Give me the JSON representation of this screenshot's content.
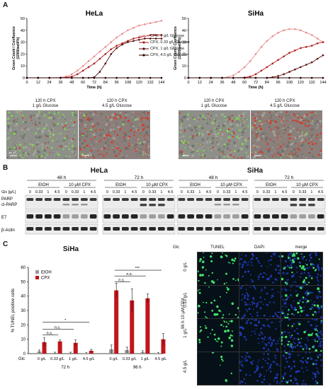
{
  "panels": {
    "A": "A",
    "B": "B",
    "C": "C"
  },
  "panelA": {
    "hela_title": "HeLa",
    "siha_title": "SiHa",
    "ylabel": "Green Count / Confluence (1000/well/%)",
    "xlabel": "Time (h)",
    "yticks": [
      "0",
      "10",
      "20",
      "30",
      "40",
      "50"
    ],
    "xticks": [
      "0",
      "12",
      "24",
      "36",
      "48",
      "60",
      "72",
      "84",
      "96",
      "108",
      "120",
      "132",
      "144"
    ],
    "legend": [
      "CPX, 0 g/L Glucose",
      "CPX, 0.33 g/L Glucose",
      "CPX, 1 g/L Glucose",
      "CPX, 4.5 g/L Glucose"
    ],
    "micro_labels": [
      [
        "120 h CPX",
        "1 g/L Glucose"
      ],
      [
        "120 h CPX",
        "4.5 g/L Glucose"
      ],
      [
        "120 h CPX",
        "1 g/L Glucose"
      ],
      [
        "120 h CPX",
        "4.5 g/L Glucose"
      ]
    ],
    "scalebar": "400 µm"
  },
  "chart_data": [
    {
      "type": "line",
      "title": "HeLa",
      "xlabel": "Time (h)",
      "ylabel": "Green Count / Confluence (1000/well/%)",
      "xlim": [
        0,
        144
      ],
      "ylim": [
        0,
        50
      ],
      "grid": false,
      "legend_position": "right",
      "series": [
        {
          "name": "CPX, 0 g/L Glucose",
          "color": "#e88c8c",
          "x": [
            0,
            12,
            24,
            36,
            42,
            48,
            54,
            60,
            66,
            72,
            78,
            84,
            90,
            96,
            102,
            108,
            114,
            120,
            126,
            132,
            138,
            144
          ],
          "y": [
            0,
            0,
            0,
            0.3,
            1,
            3,
            6,
            10,
            14,
            18,
            22,
            26,
            30,
            34,
            37,
            40,
            42,
            44,
            45,
            46,
            47,
            48
          ]
        },
        {
          "name": "CPX, 0.33 g/L Glucose",
          "color": "#b01a1a",
          "x": [
            0,
            12,
            24,
            36,
            42,
            48,
            54,
            60,
            66,
            72,
            78,
            84,
            90,
            96,
            102,
            108,
            114,
            120,
            126,
            132,
            138,
            144
          ],
          "y": [
            0,
            0,
            0,
            0,
            0.3,
            1,
            3,
            6,
            9,
            12,
            16,
            20,
            24,
            27,
            29,
            31,
            33,
            34,
            35,
            36,
            36,
            36
          ]
        },
        {
          "name": "CPX, 1 g/L Glucose",
          "color": "#5a0a0a",
          "x": [
            0,
            12,
            24,
            36,
            48,
            60,
            66,
            72,
            78,
            84,
            90,
            96,
            102,
            108,
            114,
            120,
            126,
            132,
            138,
            144
          ],
          "y": [
            0,
            0,
            0,
            0,
            0,
            0,
            0,
            0.5,
            5,
            12,
            20,
            25,
            28,
            30,
            31,
            32,
            33,
            33,
            33,
            33
          ]
        },
        {
          "name": "CPX, 4.5 g/L Glucose",
          "color": "#2a0000",
          "x": [
            0,
            12,
            24,
            36,
            48,
            60,
            72,
            84,
            96,
            108,
            120,
            132,
            144
          ],
          "y": [
            0,
            0,
            0,
            0,
            0,
            0,
            0,
            0,
            0,
            0,
            0,
            0,
            0
          ]
        }
      ]
    },
    {
      "type": "line",
      "title": "SiHa",
      "xlabel": "Time (h)",
      "ylabel": "Green Count / Confluence (1000/well/%)",
      "xlim": [
        0,
        144
      ],
      "ylim": [
        0,
        50
      ],
      "grid": false,
      "series": [
        {
          "name": "CPX, 0 g/L Glucose",
          "color": "#e88c8c",
          "x": [
            0,
            12,
            24,
            36,
            42,
            48,
            54,
            60,
            66,
            72,
            78,
            84,
            90,
            96,
            102,
            108,
            114,
            120,
            126,
            132,
            138,
            144
          ],
          "y": [
            0,
            0,
            0,
            0,
            0.5,
            2,
            5,
            9,
            14,
            20,
            26,
            31,
            35,
            38,
            40,
            41,
            41,
            40,
            38,
            36,
            33,
            30
          ]
        },
        {
          "name": "CPX, 0.33 g/L Glucose",
          "color": "#b01a1a",
          "x": [
            0,
            12,
            24,
            36,
            48,
            60,
            66,
            72,
            78,
            84,
            90,
            96,
            102,
            108,
            114,
            120,
            126,
            132,
            138,
            144
          ],
          "y": [
            0,
            0,
            0,
            0,
            0,
            0.3,
            1,
            3,
            6,
            9,
            12,
            15,
            18,
            21,
            23,
            25,
            26,
            27,
            29,
            30
          ]
        },
        {
          "name": "CPX, 1 g/L Glucose",
          "color": "#5a0a0a",
          "x": [
            0,
            12,
            24,
            36,
            48,
            60,
            72,
            84,
            90,
            96,
            102,
            108,
            114,
            120,
            126,
            132,
            138,
            144
          ],
          "y": [
            0,
            0,
            0,
            0,
            0,
            0,
            0,
            0,
            0.5,
            1.5,
            3,
            5,
            7,
            9,
            11,
            13,
            16,
            19
          ]
        },
        {
          "name": "CPX, 4.5 g/L Glucose",
          "color": "#2a0000",
          "x": [
            0,
            12,
            24,
            36,
            48,
            60,
            72,
            84,
            96,
            108,
            120,
            132,
            144
          ],
          "y": [
            0,
            0,
            0,
            0,
            0,
            0,
            0,
            0,
            0,
            0,
            0,
            0,
            0
          ]
        }
      ]
    },
    {
      "type": "bar",
      "title": "SiHa",
      "ylabel": "% TUNEL positive cells",
      "ylim": [
        0,
        60
      ],
      "yticks": [
        0,
        10,
        20,
        30,
        40,
        50,
        60
      ],
      "categories": [
        "0 g/L",
        "0.33 g/L",
        "1 g/L",
        "4.5 g/L",
        "0 g/L",
        "0.33 g/L",
        "1 g/L",
        "4.5 g/L"
      ],
      "groups": [
        "72 h",
        "96 h"
      ],
      "series": [
        {
          "name": "EtOH",
          "color": "#9a9a9a",
          "values": [
            1.5,
            0.5,
            0.5,
            0.3,
            3,
            2.5,
            1,
            0.3
          ],
          "errors": [
            1,
            0.5,
            0.5,
            0.3,
            3,
            2,
            1,
            0.3
          ]
        },
        {
          "name": "CPX",
          "color": "#c0161c",
          "values": [
            8,
            8.5,
            7.5,
            2,
            44,
            37,
            38.5,
            10
          ],
          "errors": [
            3,
            1,
            2,
            1,
            5,
            8,
            3,
            4
          ]
        }
      ],
      "significance": [
        "n.s.",
        "n.s.",
        "*",
        "n.s.",
        "n.s.",
        "***"
      ]
    }
  ],
  "panelB": {
    "hela_title": "HeLa",
    "siha_title": "SiHa",
    "time_48": "48 h",
    "time_72": "72 h",
    "etoh": "EtOH",
    "cpx": "10 µM CPX",
    "glc_label": "Glc [g/L]",
    "glc_values": [
      "0",
      "0.33",
      "1",
      "4.5",
      "0",
      "0.33",
      "1",
      "4.5"
    ],
    "row_labels": [
      "PARP",
      "cl-PARP",
      "E7",
      "β-Actin"
    ]
  },
  "panelC": {
    "title": "SiHa",
    "ylabel": "% TUNEL positive cells",
    "yticks": [
      "0",
      "10",
      "20",
      "30",
      "40",
      "50",
      "60"
    ],
    "legend": [
      "EtOH",
      "CPX"
    ],
    "glc_label": "Glc",
    "cats": [
      "0 g/L",
      "0.33 g/L",
      "1 g/L",
      "4.5 g/L",
      "0 g/L",
      "0.33 g/L",
      "1 g/L",
      "4.5 g/L"
    ],
    "group72": "72 h",
    "group96": "96 h",
    "sig": [
      "n.s.",
      "n.s.",
      "*",
      "n.s.",
      "n.s.",
      "***"
    ],
    "fluo_cols": [
      "TUNEL",
      "DAPI",
      "merge"
    ],
    "fluo_header": "Glc",
    "fluo_rows": [
      "0 g/L",
      "0.33 g/L",
      "1 g/L",
      "4.5 g/L"
    ],
    "fluo_side": "96 h 10 µM CPX"
  }
}
